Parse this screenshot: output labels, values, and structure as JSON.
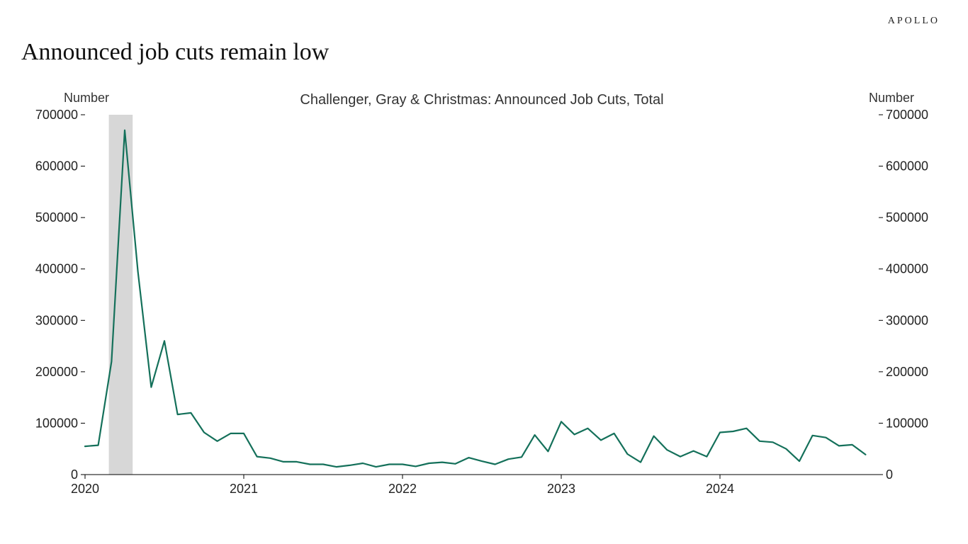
{
  "brand": "APOLLO",
  "title": "Announced job cuts remain low",
  "chart": {
    "type": "line",
    "subtitle": "Challenger, Gray & Christmas: Announced Job Cuts, Total",
    "y_axis_label_left": "Number",
    "y_axis_label_right": "Number",
    "series_color": "#14705A",
    "line_width": 2.2,
    "axis_color": "#000000",
    "tick_color": "#000000",
    "background_color": "#ffffff",
    "recession_band_color": "#d7d7d7",
    "label_fontsize": 18,
    "tick_fontsize": 18,
    "x": {
      "domain": [
        2020,
        2025
      ],
      "ticks": [
        2020,
        2021,
        2022,
        2023,
        2024
      ],
      "tick_labels": [
        "2020",
        "2021",
        "2022",
        "2023",
        "2024"
      ]
    },
    "y": {
      "domain": [
        0,
        700000
      ],
      "ticks": [
        0,
        100000,
        200000,
        300000,
        400000,
        500000,
        600000,
        700000
      ],
      "tick_labels": [
        "0",
        "100000",
        "200000",
        "300000",
        "400000",
        "500000",
        "600000",
        "700000"
      ]
    },
    "recession_bands": [
      {
        "start": 2020.15,
        "end": 2020.3
      }
    ],
    "points_x": [
      2020.0,
      2020.083,
      2020.167,
      2020.25,
      2020.333,
      2020.417,
      2020.5,
      2020.583,
      2020.667,
      2020.75,
      2020.833,
      2020.917,
      2021.0,
      2021.083,
      2021.167,
      2021.25,
      2021.333,
      2021.417,
      2021.5,
      2021.583,
      2021.667,
      2021.75,
      2021.833,
      2021.917,
      2022.0,
      2022.083,
      2022.167,
      2022.25,
      2022.333,
      2022.417,
      2022.5,
      2022.583,
      2022.667,
      2022.75,
      2022.833,
      2022.917,
      2023.0,
      2023.083,
      2023.167,
      2023.25,
      2023.333,
      2023.417,
      2023.5,
      2023.583,
      2023.667,
      2023.75,
      2023.833,
      2023.917,
      2024.0,
      2024.083,
      2024.167,
      2024.25,
      2024.333,
      2024.417,
      2024.5,
      2024.583,
      2024.667,
      2024.75,
      2024.833,
      2024.917
    ],
    "points_y": [
      55000,
      57000,
      220000,
      670000,
      395000,
      170000,
      260000,
      117000,
      120000,
      82000,
      65000,
      80000,
      80000,
      35000,
      32000,
      25000,
      25000,
      20000,
      20000,
      15000,
      18000,
      22000,
      15000,
      20000,
      20000,
      16000,
      22000,
      24000,
      21000,
      33000,
      26000,
      20000,
      30000,
      34000,
      77000,
      45000,
      103000,
      78000,
      90000,
      67000,
      80000,
      40000,
      24000,
      75000,
      48000,
      35000,
      46000,
      35000,
      82000,
      84000,
      90000,
      65000,
      63000,
      50000,
      26000,
      76000,
      72000,
      56000,
      58000,
      39000
    ]
  }
}
